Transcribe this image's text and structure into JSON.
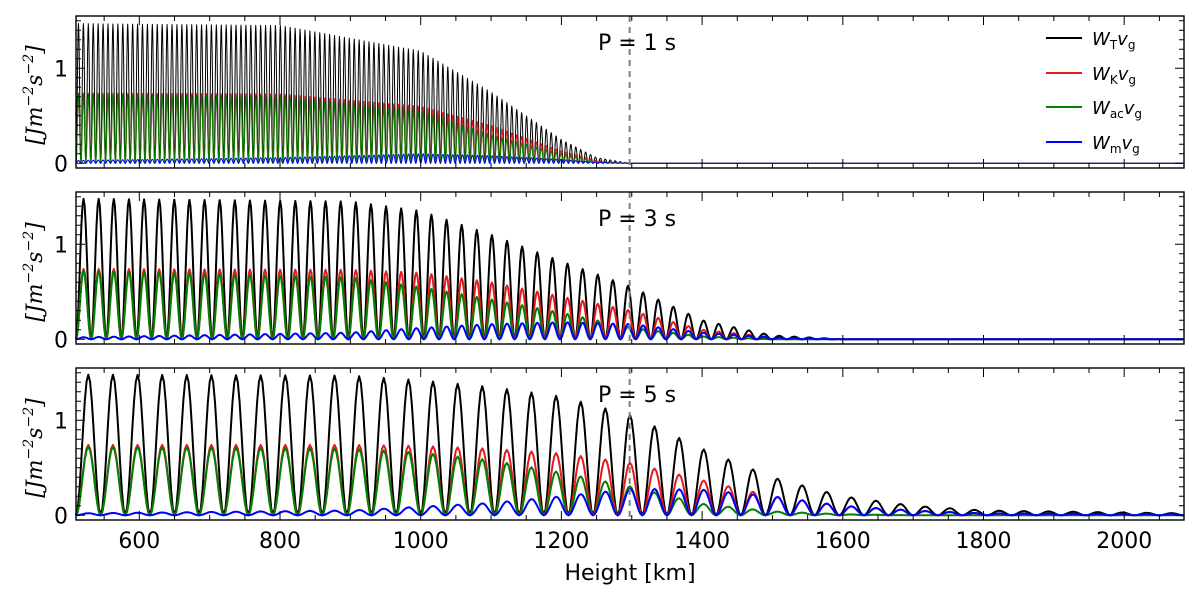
{
  "chart_data": [
    {
      "type": "line",
      "annotation": "P = 1 s",
      "period_s": 1,
      "cycle_km": 7,
      "ylabel": "[Jm^{-2}s^{-2}]",
      "xlim": [
        510,
        2085
      ],
      "ylim": [
        -0.05,
        1.55
      ],
      "yticks": [
        0,
        1
      ],
      "vline_x": 1297,
      "legend_position": "top-right",
      "legend": [
        {
          "main": "W",
          "sub": "T",
          "tail": "v",
          "tail_sub": "g",
          "color": "#000000"
        },
        {
          "main": "W",
          "sub": "K",
          "tail": "v",
          "tail_sub": "g",
          "color": "#e41a1c"
        },
        {
          "main": "W",
          "sub": "ac",
          "tail": "v",
          "tail_sub": "g",
          "color": "#008000"
        },
        {
          "main": "W",
          "sub": "m",
          "tail": "v",
          "tail_sub": "g",
          "color": "#0000ff"
        }
      ],
      "series": [
        {
          "name": "W_T v_g",
          "color": "#000000",
          "x": [
            510,
            800,
            1000,
            1100,
            1200,
            1250,
            1297,
            2085
          ],
          "envelope": [
            1.47,
            1.45,
            1.18,
            0.75,
            0.25,
            0.06,
            0.0,
            0.0
          ]
        },
        {
          "name": "W_K v_g",
          "color": "#e41a1c",
          "x": [
            510,
            800,
            1000,
            1100,
            1200,
            1250,
            1297,
            2085
          ],
          "envelope": [
            0.74,
            0.73,
            0.6,
            0.4,
            0.13,
            0.03,
            0.0,
            0.0
          ]
        },
        {
          "name": "W_ac v_g",
          "color": "#008000",
          "x": [
            510,
            800,
            1000,
            1100,
            1200,
            1250,
            1297,
            2085
          ],
          "envelope": [
            0.73,
            0.7,
            0.55,
            0.3,
            0.1,
            0.02,
            0.0,
            0.0
          ]
        },
        {
          "name": "W_m v_g",
          "color": "#0000ff",
          "x": [
            510,
            800,
            1000,
            1100,
            1200,
            1250,
            1297,
            2085
          ],
          "envelope": [
            0.03,
            0.06,
            0.1,
            0.08,
            0.04,
            0.01,
            0.0,
            0.0
          ]
        }
      ]
    },
    {
      "type": "line",
      "annotation": "P = 3 s",
      "period_s": 3,
      "cycle_km": 21.5,
      "ylabel": "[Jm^{-2}s^{-2}]",
      "xlim": [
        510,
        2085
      ],
      "ylim": [
        -0.05,
        1.55
      ],
      "yticks": [
        0,
        1
      ],
      "vline_x": 1297,
      "series": [
        {
          "name": "W_T v_g",
          "color": "#000000",
          "x": [
            510,
            900,
            1000,
            1100,
            1200,
            1300,
            1400,
            1500,
            1600,
            2085
          ],
          "envelope": [
            1.48,
            1.45,
            1.35,
            1.1,
            0.82,
            0.55,
            0.2,
            0.04,
            0.0,
            0.0
          ]
        },
        {
          "name": "W_K v_g",
          "color": "#e41a1c",
          "x": [
            510,
            900,
            1000,
            1100,
            1200,
            1300,
            1400,
            1500,
            1600,
            2085
          ],
          "envelope": [
            0.74,
            0.73,
            0.7,
            0.6,
            0.45,
            0.3,
            0.1,
            0.02,
            0.0,
            0.0
          ]
        },
        {
          "name": "W_ac v_g",
          "color": "#008000",
          "x": [
            510,
            900,
            1000,
            1100,
            1200,
            1300,
            1400,
            1500,
            1600,
            2085
          ],
          "envelope": [
            0.72,
            0.65,
            0.55,
            0.42,
            0.28,
            0.12,
            0.03,
            0.0,
            0.0,
            0.0
          ]
        },
        {
          "name": "W_m v_g",
          "color": "#0000ff",
          "x": [
            510,
            900,
            1000,
            1100,
            1200,
            1300,
            1400,
            1500,
            1600,
            2085
          ],
          "envelope": [
            0.02,
            0.07,
            0.12,
            0.16,
            0.18,
            0.16,
            0.07,
            0.02,
            0.0,
            0.0
          ]
        }
      ]
    },
    {
      "type": "line",
      "annotation": "P = 5 s",
      "period_s": 5,
      "cycle_km": 35,
      "xlabel": "Height [km]",
      "ylabel": "[Jm^{-2}s^{-2}]",
      "xlim": [
        510,
        2085
      ],
      "ylim": [
        -0.05,
        1.55
      ],
      "xticks": [
        600,
        800,
        1000,
        1200,
        1400,
        1600,
        1800,
        2000
      ],
      "yticks": [
        0,
        1
      ],
      "vline_x": 1297,
      "series": [
        {
          "name": "W_T v_g",
          "color": "#000000",
          "x": [
            510,
            900,
            1000,
            1100,
            1200,
            1300,
            1400,
            1500,
            1600,
            1700,
            1800,
            2085
          ],
          "envelope": [
            1.48,
            1.47,
            1.42,
            1.35,
            1.25,
            1.05,
            0.7,
            0.4,
            0.2,
            0.1,
            0.05,
            0.02
          ]
        },
        {
          "name": "W_K v_g",
          "color": "#e41a1c",
          "x": [
            510,
            900,
            1000,
            1100,
            1200,
            1300,
            1400,
            1500,
            1600,
            1700,
            1800,
            2085
          ],
          "envelope": [
            0.74,
            0.74,
            0.73,
            0.7,
            0.65,
            0.55,
            0.37,
            0.2,
            0.1,
            0.05,
            0.02,
            0.01
          ]
        },
        {
          "name": "W_ac v_g",
          "color": "#008000",
          "x": [
            510,
            900,
            1000,
            1100,
            1200,
            1300,
            1400,
            1500,
            1600,
            1700,
            1800,
            2085
          ],
          "envelope": [
            0.72,
            0.7,
            0.66,
            0.58,
            0.45,
            0.3,
            0.12,
            0.04,
            0.01,
            0.0,
            0.0,
            0.0
          ]
        },
        {
          "name": "W_m v_g",
          "color": "#0000ff",
          "x": [
            510,
            900,
            1000,
            1100,
            1200,
            1300,
            1400,
            1500,
            1600,
            1700,
            1800,
            2085
          ],
          "envelope": [
            0.02,
            0.05,
            0.09,
            0.13,
            0.2,
            0.28,
            0.27,
            0.2,
            0.1,
            0.05,
            0.02,
            0.01
          ]
        }
      ]
    }
  ]
}
